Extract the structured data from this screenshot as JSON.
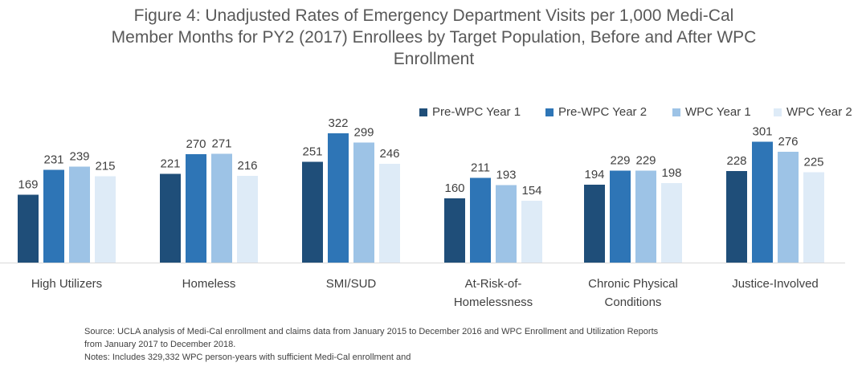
{
  "title_lines": [
    "Figure 4: Unadjusted Rates of Emergency Department Visits per 1,000 Medi-Cal",
    "Member Months for PY2 (2017) Enrollees by Target Population, Before and After WPC",
    "Enrollment"
  ],
  "footnote_lines": [
    "Source: UCLA analysis of Medi-Cal enrollment and claims data from January 2015  to December 2016 and WPC Enrollment and Utilization Reports",
    "from January 2017  to December 2018.",
    "Notes: Includes 329,332 WPC person-years with sufficient Medi-Cal enrollment and"
  ],
  "chart_data": {
    "type": "bar",
    "title": "Figure 4: Unadjusted Rates of Emergency Department Visits per 1,000 Medi-Cal Member Months for PY2 (2017) Enrollees by Target Population, Before and After WPC Enrollment",
    "xlabel": "",
    "ylabel": "",
    "ylim": [
      0,
      350
    ],
    "grid": false,
    "legend_position": "top-right",
    "categories": [
      [
        "High Utilizers"
      ],
      [
        "Homeless"
      ],
      [
        "SMI/SUD"
      ],
      [
        "At-Risk-of-",
        "Homelessness"
      ],
      [
        "Chronic Physical",
        "Conditions"
      ],
      [
        "Justice-Involved"
      ]
    ],
    "series": [
      {
        "name": "Pre-WPC Year 1",
        "color": "#1f4e79",
        "values": [
          169,
          221,
          251,
          160,
          194,
          228
        ]
      },
      {
        "name": "Pre-WPC Year 2",
        "color": "#2e75b6",
        "values": [
          231,
          270,
          322,
          211,
          229,
          301
        ]
      },
      {
        "name": "WPC Year 1",
        "color": "#9dc3e6",
        "values": [
          239,
          271,
          299,
          193,
          229,
          276
        ]
      },
      {
        "name": "WPC Year 2",
        "color": "#deebf7",
        "values": [
          215,
          216,
          246,
          154,
          198,
          225
        ]
      }
    ]
  }
}
